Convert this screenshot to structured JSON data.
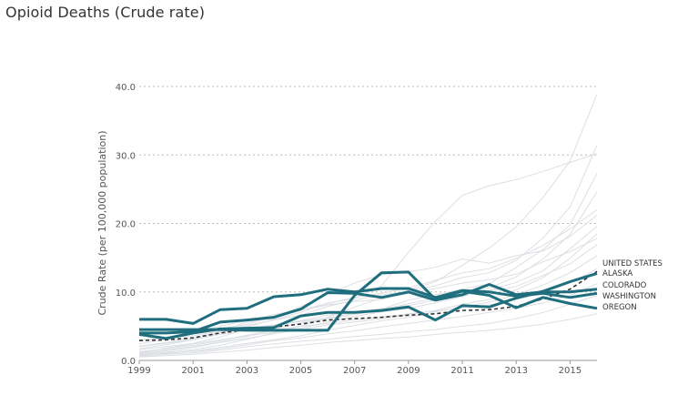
{
  "title": "Opioid Deaths (Crude rate)",
  "chart_data": {
    "type": "line",
    "title": "Opioid Deaths (Crude rate)",
    "xlabel": "",
    "ylabel": "Crude Rate (per 100,000 population)",
    "x": [
      1999,
      2000,
      2001,
      2002,
      2003,
      2004,
      2005,
      2006,
      2007,
      2008,
      2009,
      2010,
      2011,
      2012,
      2013,
      2014,
      2015,
      2016
    ],
    "x_ticks": [
      "1999",
      "2001",
      "2003",
      "2005",
      "2007",
      "2009",
      "2011",
      "2013",
      "2015"
    ],
    "y_ticks": [
      "0.0",
      "10.0",
      "20.0",
      "30.0",
      "40.0"
    ],
    "ylim": [
      0,
      40
    ],
    "xlim": [
      1999,
      2016
    ],
    "grid": "horizontal dotted",
    "colors": {
      "highlight": "#1f6e7e",
      "reference": "#333333",
      "background_series": "#dcdfe3",
      "grid": "#bbbbbb"
    },
    "series": [
      {
        "name": "UNITED STATES",
        "style": "dashed",
        "values": [
          2.9,
          3.0,
          3.3,
          4.0,
          4.5,
          4.9,
          5.3,
          5.9,
          6.1,
          6.3,
          6.6,
          6.8,
          7.3,
          7.4,
          7.9,
          9.0,
          10.4,
          13.0
        ]
      },
      {
        "name": "ALASKA",
        "style": "solid",
        "values": [
          3.8,
          3.2,
          4.0,
          4.6,
          4.7,
          4.8,
          6.5,
          7.0,
          7.0,
          7.3,
          7.8,
          5.9,
          8.0,
          7.8,
          9.1,
          10.1,
          11.5,
          12.7
        ]
      },
      {
        "name": "COLORADO",
        "style": "solid",
        "values": [
          4.0,
          4.0,
          4.2,
          5.6,
          5.9,
          6.3,
          7.5,
          9.9,
          9.8,
          9.2,
          10.0,
          8.8,
          9.6,
          11.1,
          9.6,
          10.0,
          10.0,
          10.4
        ]
      },
      {
        "name": "WASHINGTON",
        "style": "solid",
        "values": [
          6.0,
          6.0,
          5.4,
          7.4,
          7.6,
          9.3,
          9.6,
          10.4,
          10.0,
          10.5,
          10.5,
          9.2,
          10.2,
          10.0,
          9.4,
          9.8,
          9.2,
          9.8
        ]
      },
      {
        "name": "OREGON",
        "style": "solid",
        "values": [
          4.5,
          4.5,
          4.5,
          4.5,
          4.4,
          4.4,
          4.4,
          4.4,
          9.5,
          12.8,
          12.9,
          8.9,
          10.1,
          9.5,
          7.7,
          9.2,
          8.3,
          7.6
        ]
      }
    ],
    "background_series": [
      [
        1.2,
        1.8,
        2.4,
        3.0,
        3.6,
        4.1,
        4.7,
        5.6,
        6.4,
        7.1,
        7.6,
        8.4,
        9.3,
        10.6,
        12.2,
        14.8,
        18.4,
        24.6
      ],
      [
        0.9,
        1.2,
        1.6,
        2.2,
        3.1,
        4.0,
        5.0,
        6.3,
        7.8,
        9.1,
        10.2,
        11.5,
        13.9,
        16.4,
        19.5,
        23.8,
        29.1,
        38.9
      ],
      [
        2.1,
        2.6,
        3.3,
        4.2,
        5.1,
        5.9,
        6.6,
        7.9,
        8.8,
        9.6,
        10.1,
        10.9,
        12.1,
        12.8,
        14.6,
        17.9,
        22.4,
        31.4
      ],
      [
        1.6,
        2.0,
        2.5,
        3.4,
        4.6,
        5.2,
        5.8,
        6.6,
        7.1,
        7.5,
        8.8,
        9.6,
        10.4,
        11.2,
        13.6,
        16.2,
        19.8,
        27.3
      ],
      [
        0.6,
        0.9,
        1.1,
        1.5,
        2.0,
        2.4,
        2.8,
        3.1,
        3.5,
        3.8,
        4.2,
        4.5,
        5.0,
        5.4,
        6.1,
        7.0,
        8.2,
        9.5
      ],
      [
        1.1,
        1.5,
        2.0,
        2.7,
        3.5,
        4.6,
        5.5,
        6.1,
        6.7,
        7.4,
        8.3,
        9.1,
        9.4,
        10.2,
        11.4,
        13.1,
        16.3,
        19.6
      ],
      [
        2.4,
        3.1,
        3.9,
        4.6,
        5.3,
        6.4,
        7.3,
        8.1,
        8.6,
        8.9,
        9.8,
        10.5,
        11.3,
        11.8,
        12.6,
        14.4,
        15.9,
        17.8
      ],
      [
        0.8,
        1.0,
        1.4,
        1.9,
        2.5,
        3.0,
        3.6,
        4.4,
        5.1,
        5.8,
        6.3,
        7.1,
        7.8,
        8.5,
        9.6,
        11.0,
        12.8,
        15.3
      ],
      [
        1.7,
        2.3,
        3.0,
        3.8,
        4.4,
        5.1,
        5.7,
        6.2,
        6.9,
        7.6,
        8.0,
        8.8,
        9.7,
        10.1,
        10.8,
        12.4,
        14.1,
        16.9
      ],
      [
        3.0,
        3.4,
        4.1,
        5.0,
        5.8,
        6.7,
        7.4,
        8.3,
        9.2,
        9.8,
        10.6,
        11.7,
        12.8,
        13.4,
        14.9,
        16.8,
        19.2,
        22.0
      ],
      [
        0.5,
        0.7,
        0.9,
        1.2,
        1.5,
        1.9,
        2.2,
        2.6,
        2.9,
        3.2,
        3.4,
        3.8,
        4.1,
        4.4,
        4.8,
        5.3,
        6.0,
        6.8
      ],
      [
        1.3,
        1.7,
        2.2,
        2.9,
        3.7,
        4.4,
        5.0,
        5.4,
        5.9,
        6.3,
        6.8,
        7.2,
        7.7,
        8.1,
        8.9,
        9.8,
        11.3,
        13.4
      ],
      [
        2.0,
        2.5,
        3.1,
        4.0,
        4.9,
        6.0,
        7.0,
        8.4,
        9.0,
        10.9,
        15.8,
        20.3,
        24.1,
        25.5,
        26.4,
        27.6,
        28.9,
        30.2
      ],
      [
        1.0,
        1.4,
        1.9,
        2.6,
        3.2,
        3.9,
        4.5,
        5.2,
        5.6,
        6.1,
        6.7,
        7.3,
        8.2,
        8.9,
        10.3,
        12.1,
        14.9,
        18.5
      ],
      [
        2.8,
        3.3,
        3.6,
        4.3,
        5.6,
        6.2,
        7.9,
        9.6,
        11.3,
        12.5,
        12.9,
        13.6,
        14.8,
        14.2,
        15.3,
        16.0,
        18.1,
        21.2
      ],
      [
        0.7,
        1.1,
        1.3,
        1.7,
        2.3,
        2.9,
        3.3,
        3.9,
        4.3,
        4.9,
        5.4,
        5.9,
        6.4,
        7.0,
        7.6,
        8.4,
        9.5,
        11.2
      ]
    ]
  }
}
